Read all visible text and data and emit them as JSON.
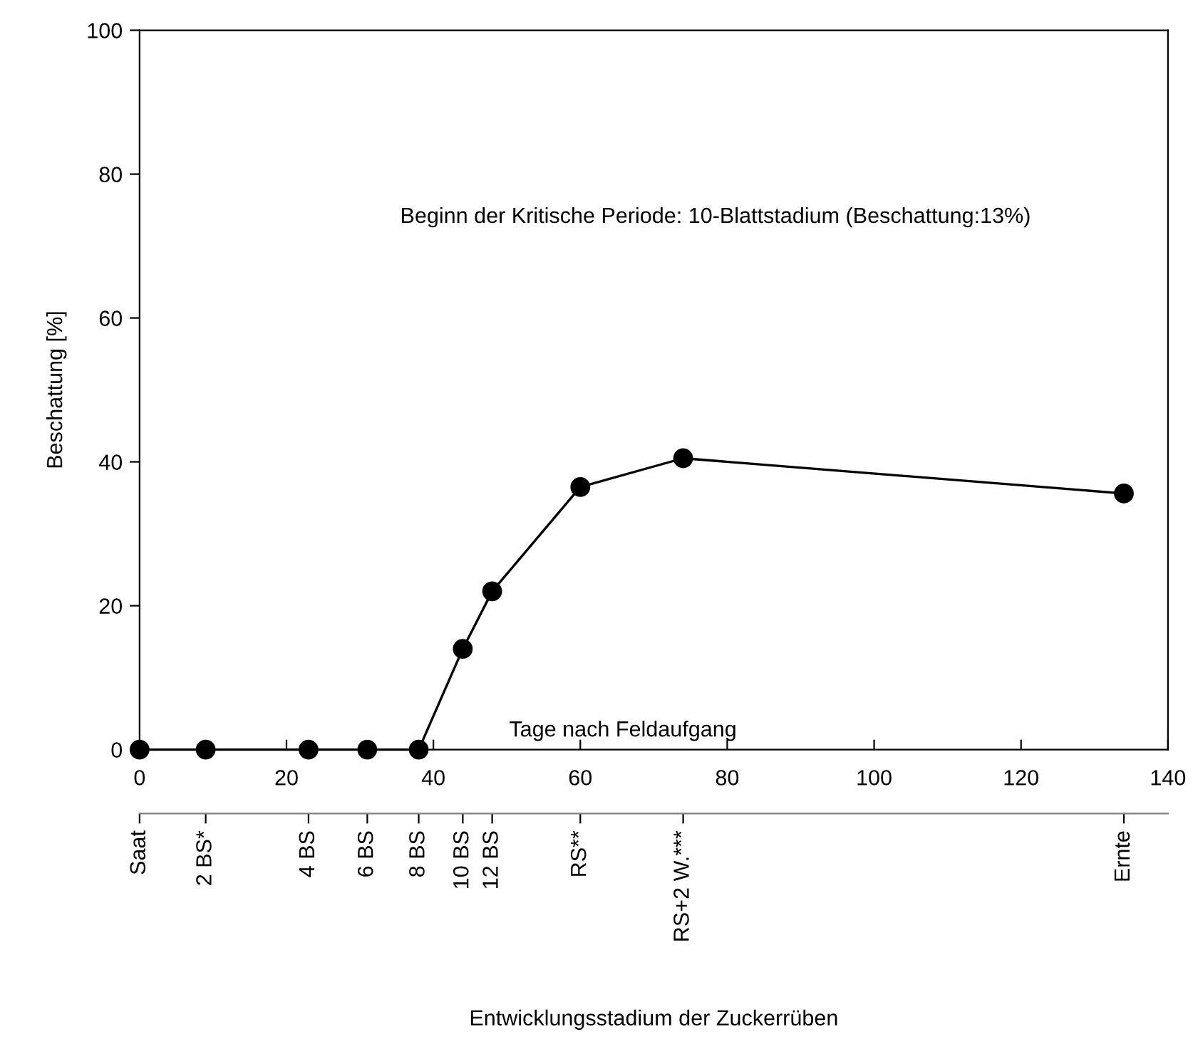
{
  "chart_data": {
    "type": "line",
    "xlabel": "Tage nach Feldaufgang",
    "ylabel": "Beschattung [%]",
    "x2label": "Entwicklungsstadium der Zuckerrüben",
    "x": [
      0,
      9,
      23,
      31,
      38,
      44,
      48,
      60,
      74,
      134
    ],
    "series": [
      {
        "color": "#000000",
        "values": [
          0,
          0,
          0,
          0,
          0,
          14,
          22,
          36.5,
          40.5,
          35.6
        ]
      }
    ],
    "marker": "circle",
    "line_style": "solid",
    "grid": false,
    "legend": false,
    "xlim": [
      0,
      140
    ],
    "xticks": [
      0,
      20,
      40,
      60,
      80,
      100,
      120,
      140
    ],
    "ylim": [
      0,
      100
    ],
    "yticks": [
      0,
      20,
      40,
      60,
      80,
      100
    ],
    "annotations": [
      "Beginn der Kritische Periode: 10-Blattstadium (Beschattung:13%)",
      {
        "text": "Saat",
        "x": 0
      },
      {
        "text": "2 BS*",
        "x": 9
      },
      {
        "text": "4 BS",
        "x": 23
      },
      {
        "text": "6 BS",
        "x": 31
      },
      {
        "text": "8 BS",
        "x": 38
      },
      {
        "text": "10 BS",
        "x": 44
      },
      {
        "text": "12 BS",
        "x": 48
      },
      {
        "text": "RS**",
        "x": 60
      },
      {
        "text": "RS+2 W.***",
        "x": 74
      },
      {
        "text": "Ernte",
        "x": 134
      }
    ]
  }
}
